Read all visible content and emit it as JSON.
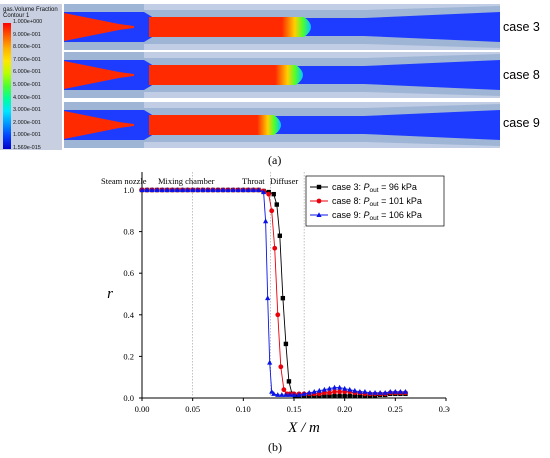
{
  "panel_a": {
    "legend_title_line1": "gas.Volume Fraction",
    "legend_title_line2": "Contour 1",
    "colorbar_labels": [
      "1.000e+000",
      "9.000e-001",
      "8.000e-001",
      "7.000e-001",
      "6.000e-001",
      "5.000e-001",
      "4.000e-001",
      "3.000e-001",
      "2.000e-001",
      "1.000e-001",
      "1.569e-015"
    ],
    "cases": [
      "case 3",
      "case 8",
      "case 9"
    ],
    "caption": "(a)",
    "colors": {
      "background": "#9fb5d6",
      "wall": "#c0cde4",
      "liquid": "#1e3cff",
      "vapor": "#ff2a00",
      "interface_green": "#4cff2e"
    }
  },
  "panel_b": {
    "caption": "(b)"
  },
  "chart_data": {
    "type": "line",
    "xlabel": "X / m",
    "ylabel": "r",
    "xlim": [
      0,
      0.3
    ],
    "ylim": [
      0,
      1.0
    ],
    "x_ticks": [
      "0.00",
      "0.05",
      "0.10",
      "0.15",
      "0.20",
      "0.25",
      "0.30"
    ],
    "y_ticks": [
      "0.0",
      "0.2",
      "0.4",
      "0.6",
      "0.8",
      "1.0"
    ],
    "regions": [
      "Steam nozzle",
      "Mixing chamber",
      "Throat",
      "Diffuser"
    ],
    "region_dividers_x": [
      0.05,
      0.127,
      0.16
    ],
    "grid": false,
    "legend_position": "top-right",
    "series": [
      {
        "name": "case 3: ",
        "legend_parts": [
          "case 3: ",
          "P",
          "out",
          " = 96 kPa"
        ],
        "color": "#000000",
        "marker": "square",
        "x": [
          0,
          0.005,
          0.01,
          0.015,
          0.02,
          0.025,
          0.03,
          0.035,
          0.04,
          0.045,
          0.05,
          0.055,
          0.06,
          0.065,
          0.07,
          0.075,
          0.08,
          0.085,
          0.09,
          0.095,
          0.1,
          0.105,
          0.11,
          0.115,
          0.12,
          0.125,
          0.13,
          0.133,
          0.136,
          0.139,
          0.142,
          0.145,
          0.148,
          0.151,
          0.155,
          0.16,
          0.165,
          0.17,
          0.175,
          0.18,
          0.185,
          0.19,
          0.195,
          0.2,
          0.205,
          0.21,
          0.215,
          0.22,
          0.225,
          0.23,
          0.235,
          0.24,
          0.245,
          0.25,
          0.255,
          0.26
        ],
        "y": [
          1,
          1,
          1,
          1,
          1,
          1,
          1,
          1,
          1,
          1,
          1,
          1,
          1,
          1,
          1,
          1,
          1,
          1,
          1,
          1,
          1,
          1,
          1,
          1,
          0.995,
          0.99,
          0.98,
          0.93,
          0.78,
          0.48,
          0.26,
          0.08,
          0.02,
          0.01,
          0.01,
          0.01,
          0.01,
          0.01,
          0.01,
          0.01,
          0.01,
          0.01,
          0.01,
          0.01,
          0.01,
          0.01,
          0.01,
          0.01,
          0.01,
          0.01,
          0.015,
          0.015,
          0.02,
          0.02,
          0.02,
          0.02
        ]
      },
      {
        "name": "case 8: ",
        "legend_parts": [
          "case 8: ",
          "P",
          "out",
          " = 101 kPa"
        ],
        "color": "#e8000b",
        "marker": "circle",
        "x": [
          0,
          0.005,
          0.01,
          0.015,
          0.02,
          0.025,
          0.03,
          0.035,
          0.04,
          0.045,
          0.05,
          0.055,
          0.06,
          0.065,
          0.07,
          0.075,
          0.08,
          0.085,
          0.09,
          0.095,
          0.1,
          0.105,
          0.11,
          0.115,
          0.12,
          0.125,
          0.128,
          0.131,
          0.134,
          0.137,
          0.14,
          0.143,
          0.146,
          0.15,
          0.155,
          0.16,
          0.165,
          0.17,
          0.175,
          0.18,
          0.185,
          0.19,
          0.195,
          0.2,
          0.205,
          0.21,
          0.215,
          0.22,
          0.225,
          0.23,
          0.235,
          0.24,
          0.245,
          0.25,
          0.255,
          0.26
        ],
        "y": [
          1,
          1,
          1,
          1,
          1,
          1,
          1,
          1,
          1,
          1,
          1,
          1,
          1,
          1,
          1,
          1,
          1,
          1,
          1,
          1,
          1,
          1,
          1,
          1,
          0.995,
          0.98,
          0.9,
          0.72,
          0.4,
          0.15,
          0.04,
          0.02,
          0.02,
          0.02,
          0.02,
          0.02,
          0.02,
          0.02,
          0.02,
          0.025,
          0.025,
          0.03,
          0.03,
          0.03,
          0.03,
          0.025,
          0.025,
          0.02,
          0.02,
          0.02,
          0.02,
          0.02,
          0.025,
          0.025,
          0.025,
          0.025
        ]
      },
      {
        "name": "case 9: ",
        "legend_parts": [
          "case 9: ",
          "P",
          "out",
          " = 106 kPa"
        ],
        "color": "#0a14e6",
        "marker": "triangle",
        "x": [
          0,
          0.005,
          0.01,
          0.015,
          0.02,
          0.025,
          0.03,
          0.035,
          0.04,
          0.045,
          0.05,
          0.055,
          0.06,
          0.065,
          0.07,
          0.075,
          0.08,
          0.085,
          0.09,
          0.095,
          0.1,
          0.105,
          0.11,
          0.115,
          0.12,
          0.122,
          0.124,
          0.126,
          0.128,
          0.13,
          0.134,
          0.138,
          0.142,
          0.146,
          0.15,
          0.155,
          0.16,
          0.165,
          0.17,
          0.175,
          0.18,
          0.185,
          0.19,
          0.195,
          0.2,
          0.205,
          0.21,
          0.215,
          0.22,
          0.225,
          0.23,
          0.235,
          0.24,
          0.245,
          0.25,
          0.255,
          0.26
        ],
        "y": [
          1,
          1,
          1,
          1,
          1,
          1,
          1,
          1,
          1,
          1,
          1,
          1,
          1,
          1,
          1,
          1,
          1,
          1,
          1,
          1,
          1,
          1,
          1,
          1,
          0.99,
          0.85,
          0.48,
          0.17,
          0.03,
          0.02,
          0.015,
          0.015,
          0.015,
          0.015,
          0.015,
          0.015,
          0.02,
          0.025,
          0.03,
          0.035,
          0.04,
          0.045,
          0.05,
          0.05,
          0.045,
          0.04,
          0.035,
          0.03,
          0.03,
          0.025,
          0.025,
          0.025,
          0.025,
          0.03,
          0.03,
          0.03,
          0.03
        ]
      }
    ]
  }
}
